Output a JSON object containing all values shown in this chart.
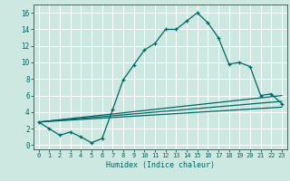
{
  "xlabel": "Humidex (Indice chaleur)",
  "bg_color": "#cce8e0",
  "grid_color": "#ffffff",
  "line_color": "#006666",
  "xlim": [
    -0.5,
    23.5
  ],
  "ylim": [
    -0.5,
    17.0
  ],
  "xticks": [
    0,
    1,
    2,
    3,
    4,
    5,
    6,
    7,
    8,
    9,
    10,
    11,
    12,
    13,
    14,
    15,
    16,
    17,
    18,
    19,
    20,
    21,
    22,
    23
  ],
  "yticks": [
    0,
    2,
    4,
    6,
    8,
    10,
    12,
    14,
    16
  ],
  "curve1_x": [
    0,
    1,
    2,
    3,
    4,
    5,
    6,
    7,
    8,
    9,
    10,
    11,
    12,
    13,
    14,
    15,
    16,
    17,
    18,
    19,
    20,
    21,
    22,
    23
  ],
  "curve1_y": [
    2.8,
    2.0,
    1.2,
    1.6,
    1.0,
    0.3,
    0.8,
    4.3,
    7.9,
    9.7,
    11.5,
    12.3,
    14.0,
    14.0,
    15.0,
    16.0,
    14.8,
    13.0,
    9.8,
    10.0,
    9.5,
    6.0,
    6.2,
    5.0
  ],
  "curve2_x": [
    0,
    23
  ],
  "curve2_y": [
    2.8,
    6.0
  ],
  "curve3_x": [
    0,
    23
  ],
  "curve3_y": [
    2.8,
    5.3
  ],
  "curve4_x": [
    0,
    23
  ],
  "curve4_y": [
    2.8,
    4.6
  ]
}
